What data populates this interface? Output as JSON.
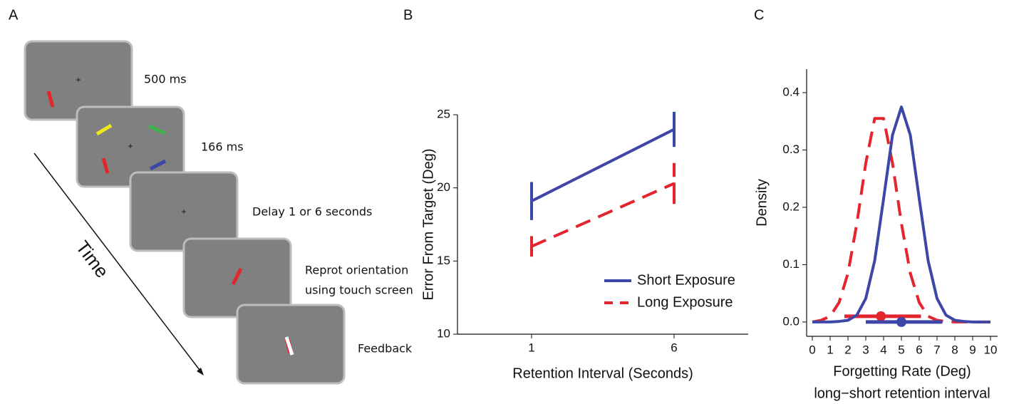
{
  "panel_labels": [
    "A",
    "B",
    "C"
  ],
  "panel_a": {
    "steps": [
      [
        "500 ms"
      ],
      [
        "166 ms"
      ],
      [
        "Delay 1 or 6 seconds"
      ],
      [
        "Reprot orientation",
        "using touch screen"
      ],
      [
        "Feedback"
      ]
    ],
    "time_label": "Time"
  },
  "chart_data": [
    {
      "type": "line",
      "x": [
        1,
        6
      ],
      "xlim": [
        -1.6,
        8.6
      ],
      "xticks": [
        1,
        6
      ],
      "ylim": [
        10,
        25
      ],
      "yticks": [
        10,
        15,
        20,
        25
      ],
      "x_label": "Retention Interval (Seconds)",
      "y_label": "Error From Target (Deg)",
      "legend": "lower right",
      "series": [
        {
          "name": "Short Exposure",
          "color": "#3c47a8",
          "dash": false,
          "values": [
            19.1,
            24.0
          ],
          "errors": [
            1.3,
            1.2
          ]
        },
        {
          "name": "Long Exposure",
          "color": "#e4252e",
          "dash": true,
          "values": [
            16.0,
            20.3
          ],
          "errors": [
            0.7,
            1.4
          ]
        }
      ]
    },
    {
      "type": "density",
      "x": [
        0,
        0.5,
        1,
        1.5,
        2,
        2.5,
        3,
        3.5,
        4,
        4.5,
        5,
        5.5,
        6,
        6.5,
        7,
        7.5,
        8,
        8.5,
        9,
        9.5,
        10
      ],
      "xlim": [
        -0.32,
        10.4
      ],
      "xticks": [
        0,
        1,
        2,
        3,
        4,
        5,
        6,
        7,
        8,
        9,
        10
      ],
      "ylim": [
        -0.025,
        0.441
      ],
      "yticks": [
        {
          "value": 0,
          "label": "0.0"
        },
        0.1,
        0.2,
        0.3,
        0.4
      ],
      "x_label": [
        "Forgetting Rate (Deg)",
        "long−short retention interval"
      ],
      "y_label": "Density",
      "series": [
        {
          "color": "#e4252e",
          "dash": true,
          "values": [
            0,
            0.003,
            0.01,
            0.034,
            0.085,
            0.172,
            0.277,
            0.355,
            0.355,
            0.277,
            0.172,
            0.085,
            0.034,
            0.01,
            0.003,
            0.001,
            0,
            0,
            0,
            0,
            0
          ],
          "point": {
            "x": 3.85,
            "y": 0.01,
            "lo": 1.8,
            "hi": 6.1
          }
        },
        {
          "color": "#3c47a8",
          "dash": false,
          "values": [
            0,
            0,
            0,
            0.001,
            0.003,
            0.012,
            0.041,
            0.107,
            0.215,
            0.326,
            0.375,
            0.326,
            0.215,
            0.107,
            0.041,
            0.012,
            0.003,
            0.001,
            0,
            0,
            0
          ],
          "point": {
            "x": 5,
            "y": 0,
            "lo": 3,
            "hi": 7.3
          }
        }
      ]
    }
  ]
}
